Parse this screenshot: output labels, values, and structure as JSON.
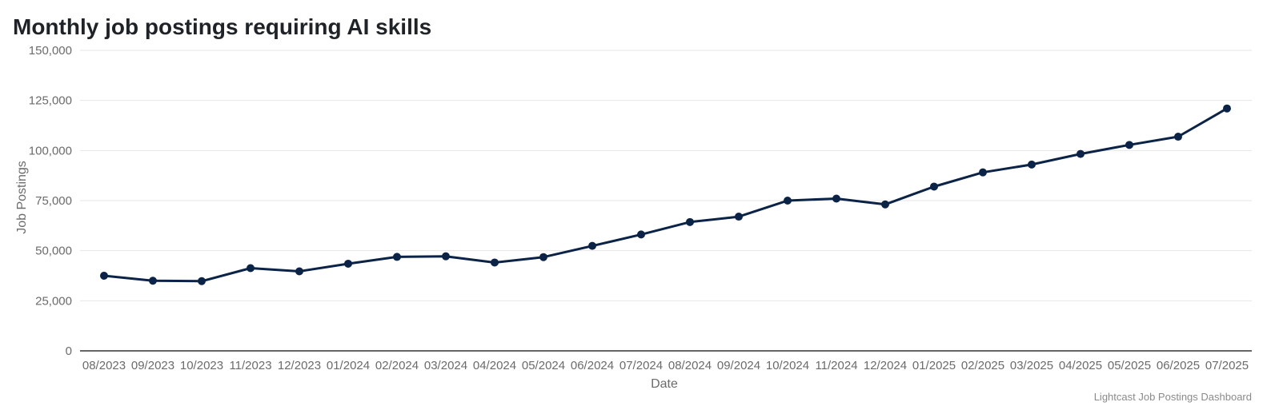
{
  "title": "Monthly job postings requiring AI skills",
  "source": "Lightcast Job Postings Dashboard",
  "colors": {
    "series": "#0b2347",
    "grid": "#e6e6e6",
    "axis": "#333333",
    "text": "#6b6b6b"
  },
  "chart_data": {
    "type": "line",
    "title": "Monthly job postings requiring AI skills",
    "xlabel": "Date",
    "ylabel": "Job Postings",
    "x": [
      "08/2023",
      "09/2023",
      "10/2023",
      "11/2023",
      "12/2023",
      "01/2024",
      "02/2024",
      "03/2024",
      "04/2024",
      "05/2024",
      "06/2024",
      "07/2024",
      "08/2024",
      "09/2024",
      "10/2024",
      "11/2024",
      "12/2024",
      "01/2025",
      "02/2025",
      "03/2025",
      "04/2025",
      "05/2025",
      "06/2025",
      "07/2025"
    ],
    "series": [
      {
        "values": [
          37500,
          35000,
          34800,
          41300,
          39700,
          43500,
          46900,
          47200,
          44100,
          46800,
          52400,
          58100,
          64300,
          67000,
          75000,
          76000,
          73100,
          82000,
          89100,
          93000,
          98300,
          102800,
          106900,
          121000
        ]
      }
    ],
    "ylim": [
      0,
      150000
    ],
    "yticks": [
      0,
      25000,
      50000,
      75000,
      100000,
      125000,
      150000
    ],
    "ytick_labels": [
      "0",
      "25,000",
      "50,000",
      "75,000",
      "100,000",
      "125,000",
      "150,000"
    ],
    "grid": true,
    "legend": "none"
  }
}
